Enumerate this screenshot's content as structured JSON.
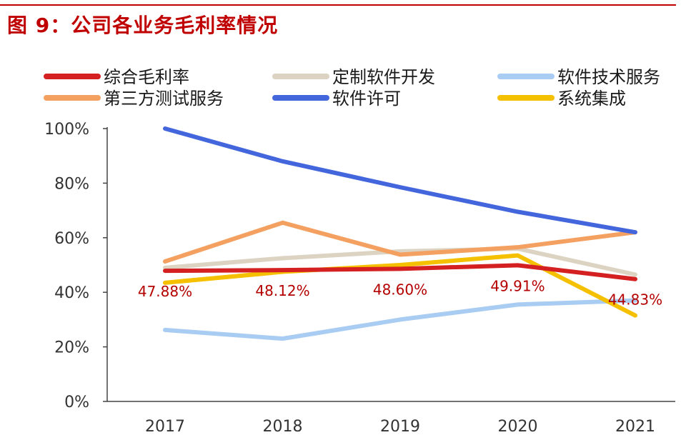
{
  "figure": {
    "title": "图 9：公司各业务毛利率情况"
  },
  "chart_data": {
    "type": "line",
    "title": "公司各业务毛利率情况",
    "xlabel": "",
    "ylabel": "",
    "categories": [
      "2017",
      "2018",
      "2019",
      "2020",
      "2021"
    ],
    "ylim": [
      0,
      100
    ],
    "y_ticks": [
      "0%",
      "20%",
      "40%",
      "60%",
      "80%",
      "100%"
    ],
    "grid": false,
    "legend_position": "top",
    "series": [
      {
        "name": "综合毛利率",
        "color": "#d42020",
        "values": [
          47.88,
          48.12,
          48.6,
          49.91,
          44.83
        ]
      },
      {
        "name": "定制软件开发",
        "color": "#ddd3c2",
        "values": [
          49.0,
          52.5,
          55.0,
          56.0,
          46.5
        ]
      },
      {
        "name": "软件技术服务",
        "color": "#a9ccf2",
        "values": [
          26.2,
          23.0,
          30.0,
          35.5,
          37.0
        ]
      },
      {
        "name": "第三方测试服务",
        "color": "#f4a060",
        "values": [
          51.3,
          65.5,
          53.8,
          56.5,
          62.0
        ]
      },
      {
        "name": "软件许可",
        "color": "#4466dd",
        "values": [
          100.0,
          88.0,
          78.5,
          69.5,
          62.0
        ]
      },
      {
        "name": "系统集成",
        "color": "#f5c000",
        "values": [
          43.5,
          47.5,
          50.0,
          53.5,
          31.5
        ]
      }
    ],
    "data_labels": {
      "series": "综合毛利率",
      "texts": [
        "47.88%",
        "48.12%",
        "48.60%",
        "49.91%",
        "44.83%"
      ],
      "color": "#b40000"
    }
  }
}
